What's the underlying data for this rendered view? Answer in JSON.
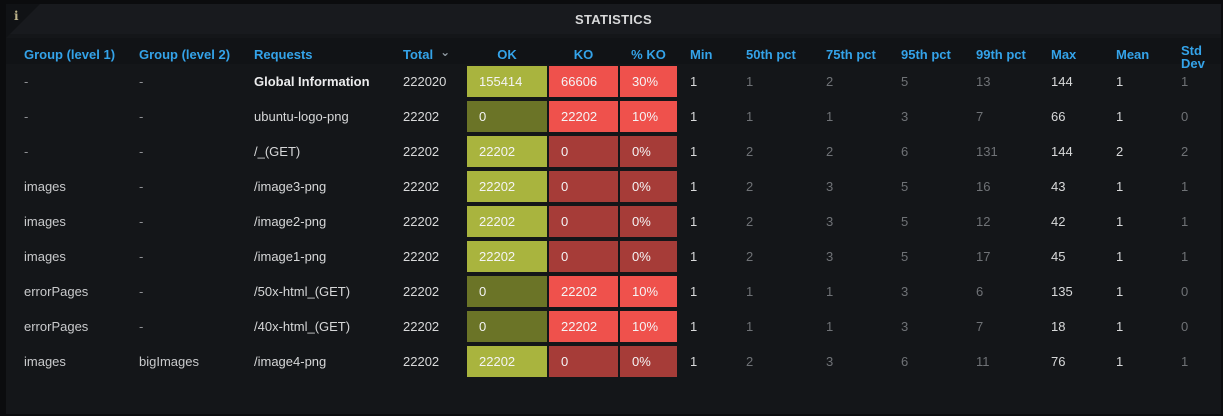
{
  "panel": {
    "title": "STATISTICS",
    "info_icon": "i"
  },
  "colors": {
    "header_blue": "#34a3e9",
    "ok_bright": "#a9b43e",
    "ok_dim": "#6b7427",
    "ko_bright": "#ef514c",
    "ko_dim": "#a63c38"
  },
  "table": {
    "columns": [
      {
        "label": "Group (level 1)"
      },
      {
        "label": "Group (level 2)"
      },
      {
        "label": "Requests"
      },
      {
        "label": "Total",
        "sorted": true
      },
      {
        "label": "OK"
      },
      {
        "label": "KO"
      },
      {
        "label": "% KO"
      },
      {
        "label": "Min"
      },
      {
        "label": "50th pct"
      },
      {
        "label": "75th pct"
      },
      {
        "label": "95th pct"
      },
      {
        "label": "99th pct"
      },
      {
        "label": "Max"
      },
      {
        "label": "Mean"
      },
      {
        "label": "Std Dev"
      }
    ],
    "sort_chevron": "⌄",
    "rows": [
      {
        "group1": "-",
        "group2": "-",
        "request": "Global Information",
        "bold": true,
        "total": "222020",
        "ok": "155414",
        "ko": "66606",
        "pct_ko": "30%",
        "min": "1",
        "p50": "1",
        "p75": "2",
        "p95": "5",
        "p99": "13",
        "max": "144",
        "mean": "1",
        "std": "1"
      },
      {
        "group1": "-",
        "group2": "-",
        "request": "ubuntu-logo-png",
        "total": "22202",
        "ok": "0",
        "ko": "22202",
        "pct_ko": "10%",
        "min": "1",
        "p50": "1",
        "p75": "1",
        "p95": "3",
        "p99": "7",
        "max": "66",
        "mean": "1",
        "std": "0"
      },
      {
        "group1": "-",
        "group2": "-",
        "request": "/_(GET)",
        "total": "22202",
        "ok": "22202",
        "ko": "0",
        "pct_ko": "0%",
        "min": "1",
        "p50": "2",
        "p75": "2",
        "p95": "6",
        "p99": "131",
        "max": "144",
        "mean": "2",
        "std": "2"
      },
      {
        "group1": "images",
        "group2": "-",
        "request": "/image3-png",
        "total": "22202",
        "ok": "22202",
        "ko": "0",
        "pct_ko": "0%",
        "min": "1",
        "p50": "2",
        "p75": "3",
        "p95": "5",
        "p99": "16",
        "max": "43",
        "mean": "1",
        "std": "1"
      },
      {
        "group1": "images",
        "group2": "-",
        "request": "/image2-png",
        "total": "22202",
        "ok": "22202",
        "ko": "0",
        "pct_ko": "0%",
        "min": "1",
        "p50": "2",
        "p75": "3",
        "p95": "5",
        "p99": "12",
        "max": "42",
        "mean": "1",
        "std": "1"
      },
      {
        "group1": "images",
        "group2": "-",
        "request": "/image1-png",
        "total": "22202",
        "ok": "22202",
        "ko": "0",
        "pct_ko": "0%",
        "min": "1",
        "p50": "2",
        "p75": "3",
        "p95": "5",
        "p99": "17",
        "max": "45",
        "mean": "1",
        "std": "1"
      },
      {
        "group1": "errorPages",
        "group2": "-",
        "request": "/50x-html_(GET)",
        "total": "22202",
        "ok": "0",
        "ko": "22202",
        "pct_ko": "10%",
        "min": "1",
        "p50": "1",
        "p75": "1",
        "p95": "3",
        "p99": "6",
        "max": "135",
        "mean": "1",
        "std": "0"
      },
      {
        "group1": "errorPages",
        "group2": "-",
        "request": "/40x-html_(GET)",
        "total": "22202",
        "ok": "0",
        "ko": "22202",
        "pct_ko": "10%",
        "min": "1",
        "p50": "1",
        "p75": "1",
        "p95": "3",
        "p99": "7",
        "max": "18",
        "mean": "1",
        "std": "0"
      },
      {
        "group1": "images",
        "group2": "bigImages",
        "request": "/image4-png",
        "total": "22202",
        "ok": "22202",
        "ko": "0",
        "pct_ko": "0%",
        "min": "1",
        "p50": "2",
        "p75": "3",
        "p95": "6",
        "p99": "11",
        "max": "76",
        "mean": "1",
        "std": "1"
      }
    ]
  }
}
